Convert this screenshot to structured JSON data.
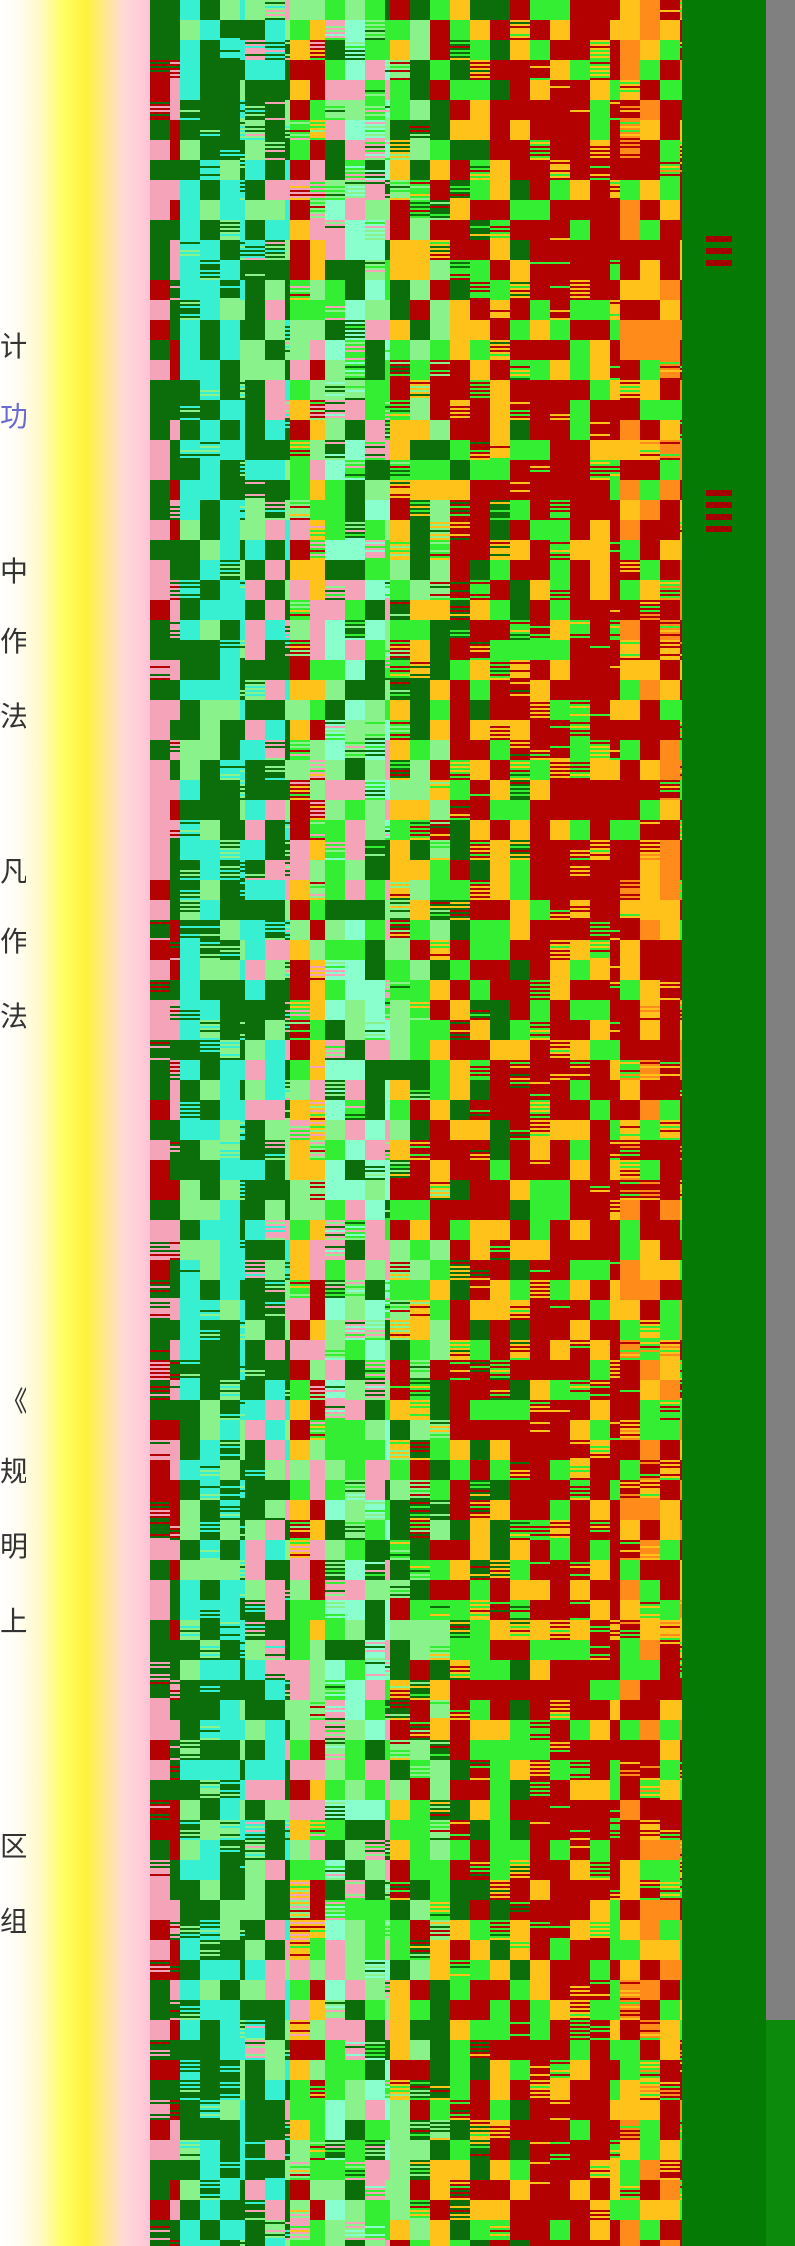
{
  "document_fragment": {
    "visible_characters": [
      "计",
      "功",
      "中",
      "作",
      "法",
      "凡",
      "作",
      "法",
      "《",
      "规",
      "明",
      "上",
      "区",
      "组"
    ]
  },
  "colors": {
    "dark_green": "#0b6e0b",
    "cyan": "#37f0d2",
    "lime": "#33ee33",
    "light_green": "#8af28a",
    "pink": "#f5a3b8",
    "dark_red": "#b30000",
    "orange_yellow": "#ffc21a",
    "scrollbar_gray": "#808080"
  }
}
